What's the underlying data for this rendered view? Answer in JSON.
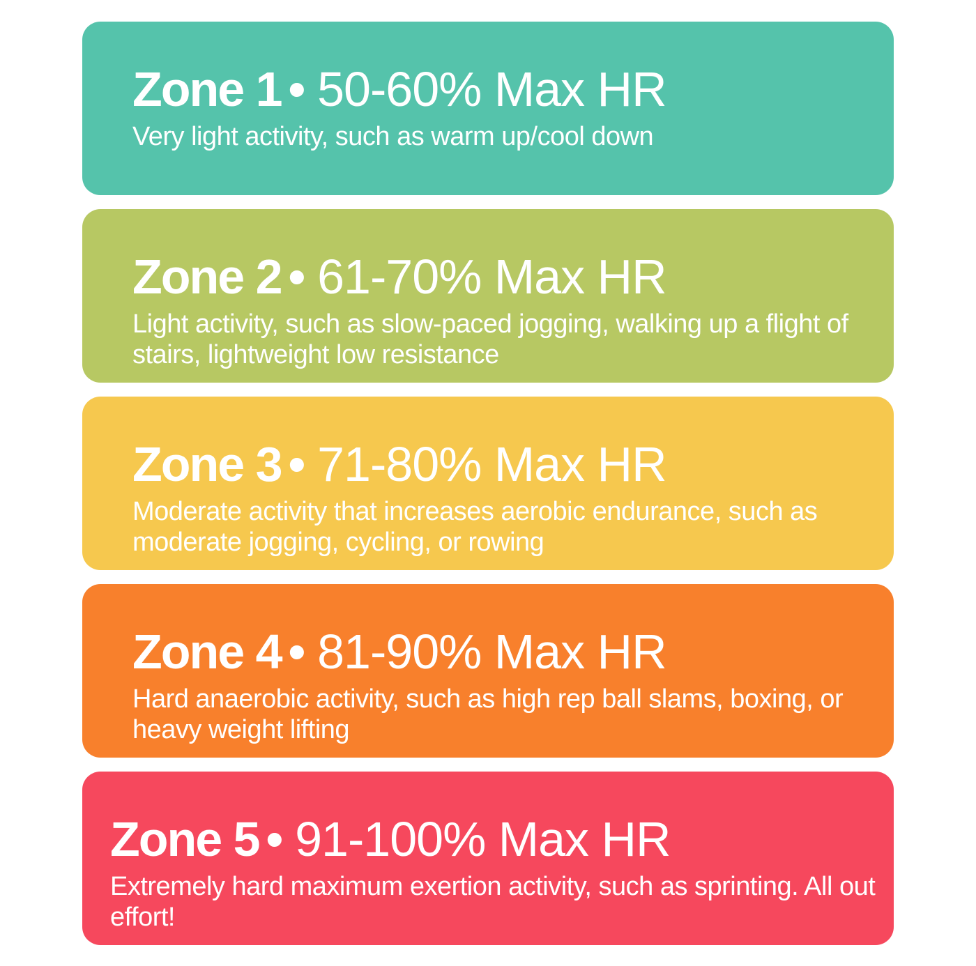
{
  "zones": [
    {
      "name": "Zone 1",
      "separator": "•",
      "range": "50-60% Max HR",
      "description": "Very light activity, such as warm up/cool down",
      "color": "#55C3AB"
    },
    {
      "name": "Zone 2",
      "separator": "•",
      "range": "61-70% Max HR",
      "description": "Light activity, such as slow-paced jogging, walking up a flight of stairs, lightweight low resistance",
      "color": "#B7C863"
    },
    {
      "name": "Zone 3",
      "separator": "•",
      "range": "71-80% Max HR",
      "description": "Moderate activity that increases aerobic endurance, such as moderate jogging, cycling, or rowing",
      "color": "#F6C84E"
    },
    {
      "name": "Zone 4",
      "separator": "•",
      "range": "81-90% Max HR",
      "description": "Hard anaerobic activity, such as high rep ball slams, boxing, or heavy weight lifting",
      "color": "#F8802C"
    },
    {
      "name": "Zone 5",
      "separator": "•",
      "range": "91-100% Max HR",
      "description": "Extremely hard maximum exertion activity, such as sprinting. All out effort!",
      "color": "#F6485D"
    }
  ]
}
